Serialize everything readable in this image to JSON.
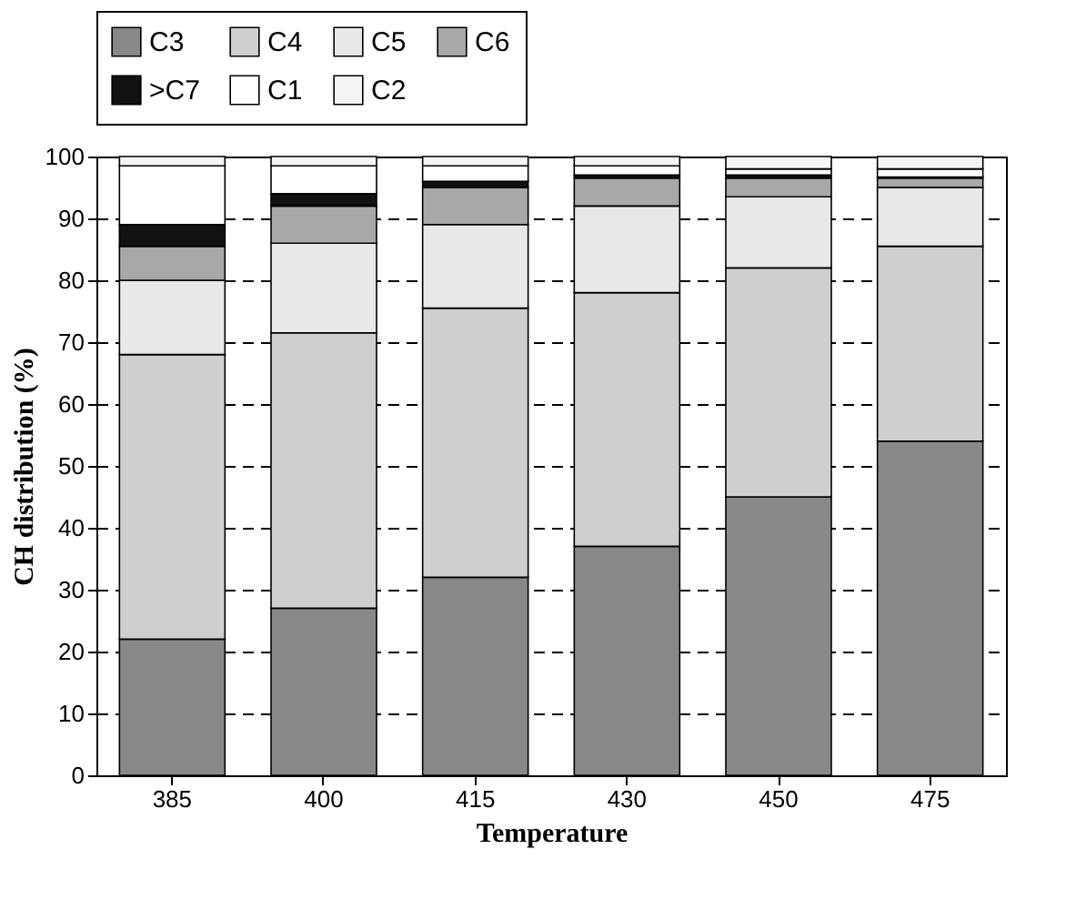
{
  "chart_data": {
    "type": "bar",
    "stacked": true,
    "xlabel": "Temperature",
    "ylabel": "CH distribution (%)",
    "categories": [
      "385",
      "400",
      "415",
      "430",
      "450",
      "475"
    ],
    "series": [
      {
        "name": "C3",
        "color": "#888888",
        "values": [
          22,
          27,
          32,
          37,
          45,
          54
        ]
      },
      {
        "name": "C4",
        "color": "#cfcfcf",
        "values": [
          46,
          44.5,
          43.5,
          41,
          37,
          31.5
        ]
      },
      {
        "name": "C5",
        "color": "#e8e8e8",
        "values": [
          12,
          14.5,
          13.5,
          14,
          11.5,
          9.5
        ]
      },
      {
        "name": "C6",
        "color": "#a8a8a8",
        "values": [
          5.5,
          6,
          6,
          4.5,
          3,
          1.5
        ]
      },
      {
        "name": ">C7",
        "color": "#111111",
        "values": [
          3.5,
          2,
          1,
          0.5,
          0.5,
          0.2
        ]
      },
      {
        "name": "C1",
        "color": "#ffffff",
        "values": [
          9.5,
          4.5,
          2.5,
          1.5,
          1,
          1.3
        ]
      },
      {
        "name": "C2",
        "color": "#f4f4f4",
        "values": [
          1.5,
          1.5,
          1.5,
          1.5,
          2,
          2
        ]
      }
    ],
    "ylim": [
      0,
      100
    ],
    "yticks": [
      0,
      10,
      20,
      30,
      40,
      50,
      60,
      70,
      80,
      90,
      100
    ],
    "grid": "y",
    "legend": "top"
  }
}
